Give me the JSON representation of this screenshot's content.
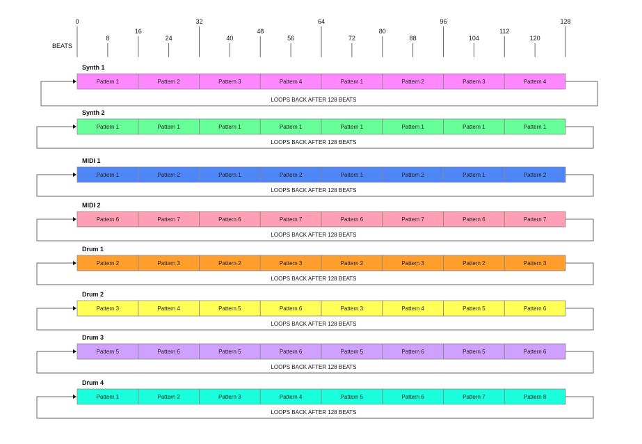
{
  "ruler": {
    "axis_label": "BEATS",
    "major_ticks": [
      "0",
      "32",
      "64",
      "96",
      "128"
    ],
    "mid_ticks": [
      "16",
      "48",
      "80",
      "112"
    ],
    "minor_ticks": [
      "8",
      "24",
      "40",
      "56",
      "72",
      "88",
      "104",
      "120"
    ]
  },
  "loop_text": "LOOPS BACK AFTER 128 BEATS",
  "tracks": [
    {
      "name": "Synth 1",
      "color": "#ff88ff",
      "patterns": [
        "Pattern 1",
        "Pattern 2",
        "Pattern 3",
        "Pattern 4",
        "Pattern 1",
        "Pattern 2",
        "Pattern 3",
        "Pattern 4"
      ]
    },
    {
      "name": "Synth 2",
      "color": "#66ff99",
      "patterns": [
        "Pattern 1",
        "Pattern 1",
        "Pattern 1",
        "Pattern 1",
        "Pattern 1",
        "Pattern 1",
        "Pattern 1",
        "Pattern 1"
      ]
    },
    {
      "name": "MIDI 1",
      "color": "#4f86f7",
      "patterns": [
        "Pattern 1",
        "Pattern 2",
        "Pattern 1",
        "Pattern 2",
        "Pattern 1",
        "Pattern 2",
        "Pattern 1",
        "Pattern 2"
      ]
    },
    {
      "name": "MIDI 2",
      "color": "#ff9eb5",
      "patterns": [
        "Pattern 6",
        "Pattern 7",
        "Pattern 6",
        "Pattern 7",
        "Pattern 6",
        "Pattern 7",
        "Pattern 6",
        "Pattern 7"
      ]
    },
    {
      "name": "Drum 1",
      "color": "#ff9e2c",
      "patterns": [
        "Pattern 2",
        "Pattern 3",
        "Pattern 2",
        "Pattern 3",
        "Pattern 2",
        "Pattern 3",
        "Pattern 2",
        "Pattern 3"
      ]
    },
    {
      "name": "Drum 2",
      "color": "#ffff55",
      "patterns": [
        "Pattern 3",
        "Pattern 4",
        "Pattern 5",
        "Pattern 6",
        "Pattern 3",
        "Pattern 4",
        "Pattern 5",
        "Pattern 6"
      ]
    },
    {
      "name": "Drum 3",
      "color": "#d0a0ff",
      "patterns": [
        "Pattern 5",
        "Pattern 6",
        "Pattern 5",
        "Pattern 6",
        "Pattern 5",
        "Pattern 6",
        "Pattern 5",
        "Pattern 6"
      ]
    },
    {
      "name": "Drum 4",
      "color": "#1affdd",
      "patterns": [
        "Pattern 1",
        "Pattern 2",
        "Pattern 3",
        "Pattern 4",
        "Pattern 5",
        "Pattern 6",
        "Pattern 7",
        "Pattern 8"
      ]
    }
  ],
  "colors": {
    "line": "#666666",
    "cell_border": "#888888"
  }
}
